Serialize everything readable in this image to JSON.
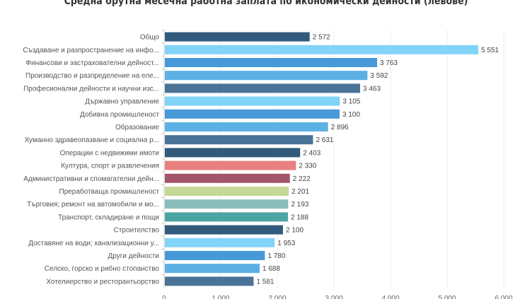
{
  "chart_data": {
    "type": "bar",
    "orientation": "horizontal",
    "title": "Средна брутна месечна работна заплата по икономически дейности (левове)",
    "categories": [
      "Общо",
      "Създаване и разпространение на инфо...",
      "Финансови и застрахователни дейност...",
      "Производство и разпределение на еле...",
      "Професионални дейности и научни изс...",
      "Държавно управление",
      "Добивна промишленост",
      "Образование",
      "Хуманно здравеопазване и социална р...",
      "Операции с недвижими имоти",
      "Култура, спорт и развлечения",
      "Административни и спомагателни дейн...",
      "Преработваща промишленост",
      "Търговия; ремонт на автомобили и мо...",
      "Транспорт, складиране и пощи",
      "Строителство",
      "Доставяне на води; канализационни у...",
      "Други дейности",
      "Селско, горско и рибно стопанство",
      "Хотелиерство и ресторантьорство"
    ],
    "values": [
      2572,
      5551,
      3763,
      3592,
      3463,
      3105,
      3100,
      2896,
      2631,
      2403,
      2330,
      2222,
      2201,
      2193,
      2188,
      2100,
      1953,
      1780,
      1688,
      1581
    ],
    "value_labels": [
      "2 572",
      "5 551",
      "3 763",
      "3 592",
      "3 463",
      "3 105",
      "3 100",
      "2 896",
      "2 631",
      "2 403",
      "2 330",
      "2 222",
      "2 201",
      "2 193",
      "2 188",
      "2 100",
      "1 953",
      "1 780",
      "1 688",
      "1 581"
    ],
    "colors": [
      "#315a7c",
      "#82d3f8",
      "#4799d8",
      "#5cb0e3",
      "#4a7397",
      "#82d3f8",
      "#4799d8",
      "#5cb0e3",
      "#4a7397",
      "#315a7c",
      "#e8807f",
      "#a3546b",
      "#c5d898",
      "#8bbcbc",
      "#4ba5a3",
      "#315a7c",
      "#82d3f8",
      "#4799d8",
      "#5cb0e3",
      "#4a7397"
    ],
    "xlim": [
      0,
      6000
    ],
    "xticks": [
      0,
      1000,
      2000,
      3000,
      4000,
      5000,
      6000
    ],
    "xtick_labels": [
      "0",
      "1 000",
      "2 000",
      "3 000",
      "4 000",
      "5 000",
      "6 000"
    ],
    "grid": true,
    "xlabel": "",
    "ylabel": ""
  }
}
